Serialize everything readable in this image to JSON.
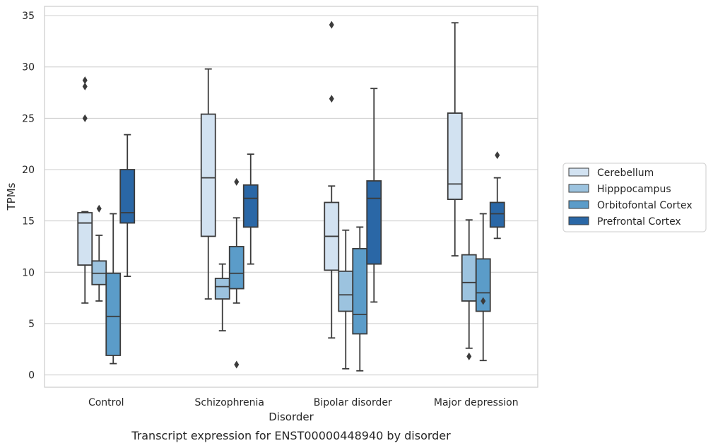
{
  "chart_data": {
    "type": "box",
    "caption": "Transcript expression for ENST00000448940 by disorder",
    "xlabel": "Disorder",
    "ylabel": "TPMs",
    "ylim": [
      -1.2,
      35.9
    ],
    "yticks": [
      0,
      5,
      10,
      15,
      20,
      25,
      30,
      35
    ],
    "grid": "horizontal",
    "legend_position": "right (outside plot)",
    "categories": [
      "Control",
      "Schizophrenia",
      "Bipolar disorder",
      "Major depression"
    ],
    "series": [
      {
        "name": "Cerebellum",
        "color": "#d2e2f1",
        "boxes": [
          {
            "whislo": 7.0,
            "q1": 10.7,
            "med": 14.8,
            "q3": 15.8,
            "whishi": 15.9,
            "fliers": [
              25.0,
              28.1,
              28.7
            ]
          },
          {
            "whislo": 7.4,
            "q1": 13.5,
            "med": 19.2,
            "q3": 25.4,
            "whishi": 29.8,
            "fliers": []
          },
          {
            "whislo": 3.6,
            "q1": 10.2,
            "med": 13.5,
            "q3": 16.8,
            "whishi": 18.4,
            "fliers": [
              26.9,
              34.1
            ]
          },
          {
            "whislo": 11.6,
            "q1": 17.1,
            "med": 18.6,
            "q3": 25.5,
            "whishi": 34.3,
            "fliers": []
          }
        ]
      },
      {
        "name": "Hipppocampus",
        "color": "#9cc3df",
        "boxes": [
          {
            "whislo": 7.2,
            "q1": 8.8,
            "med": 9.9,
            "q3": 11.1,
            "whishi": 13.6,
            "fliers": [
              16.2
            ]
          },
          {
            "whislo": 4.3,
            "q1": 7.4,
            "med": 8.6,
            "q3": 9.4,
            "whishi": 10.8,
            "fliers": []
          },
          {
            "whislo": 0.6,
            "q1": 6.2,
            "med": 7.8,
            "q3": 10.1,
            "whishi": 14.1,
            "fliers": []
          },
          {
            "whislo": 2.6,
            "q1": 7.2,
            "med": 9.0,
            "q3": 11.7,
            "whishi": 15.1,
            "fliers": [
              1.8
            ]
          }
        ]
      },
      {
        "name": "Orbitofontal Cortex",
        "color": "#5b9cc9",
        "boxes": [
          {
            "whislo": 1.1,
            "q1": 1.9,
            "med": 5.7,
            "q3": 9.9,
            "whishi": 15.7,
            "fliers": []
          },
          {
            "whislo": 7.0,
            "q1": 8.4,
            "med": 9.9,
            "q3": 12.5,
            "whishi": 15.3,
            "fliers": [
              1.0,
              18.8
            ]
          },
          {
            "whislo": 0.4,
            "q1": 4.0,
            "med": 5.9,
            "q3": 12.3,
            "whishi": 14.4,
            "fliers": []
          },
          {
            "whislo": 1.4,
            "q1": 6.2,
            "med": 8.0,
            "q3": 11.3,
            "whishi": 15.7,
            "fliers": [
              7.2
            ]
          }
        ]
      },
      {
        "name": "Prefrontal Cortex",
        "color": "#2a67a6",
        "boxes": [
          {
            "whislo": 9.6,
            "q1": 14.8,
            "med": 15.8,
            "q3": 20.0,
            "whishi": 23.4,
            "fliers": []
          },
          {
            "whislo": 10.8,
            "q1": 14.4,
            "med": 17.2,
            "q3": 18.5,
            "whishi": 21.5,
            "fliers": []
          },
          {
            "whislo": 7.1,
            "q1": 10.8,
            "med": 17.2,
            "q3": 18.9,
            "whishi": 27.9,
            "fliers": []
          },
          {
            "whislo": 13.3,
            "q1": 14.4,
            "med": 15.7,
            "q3": 16.8,
            "whishi": 19.2,
            "fliers": [
              21.4
            ]
          }
        ]
      }
    ]
  }
}
